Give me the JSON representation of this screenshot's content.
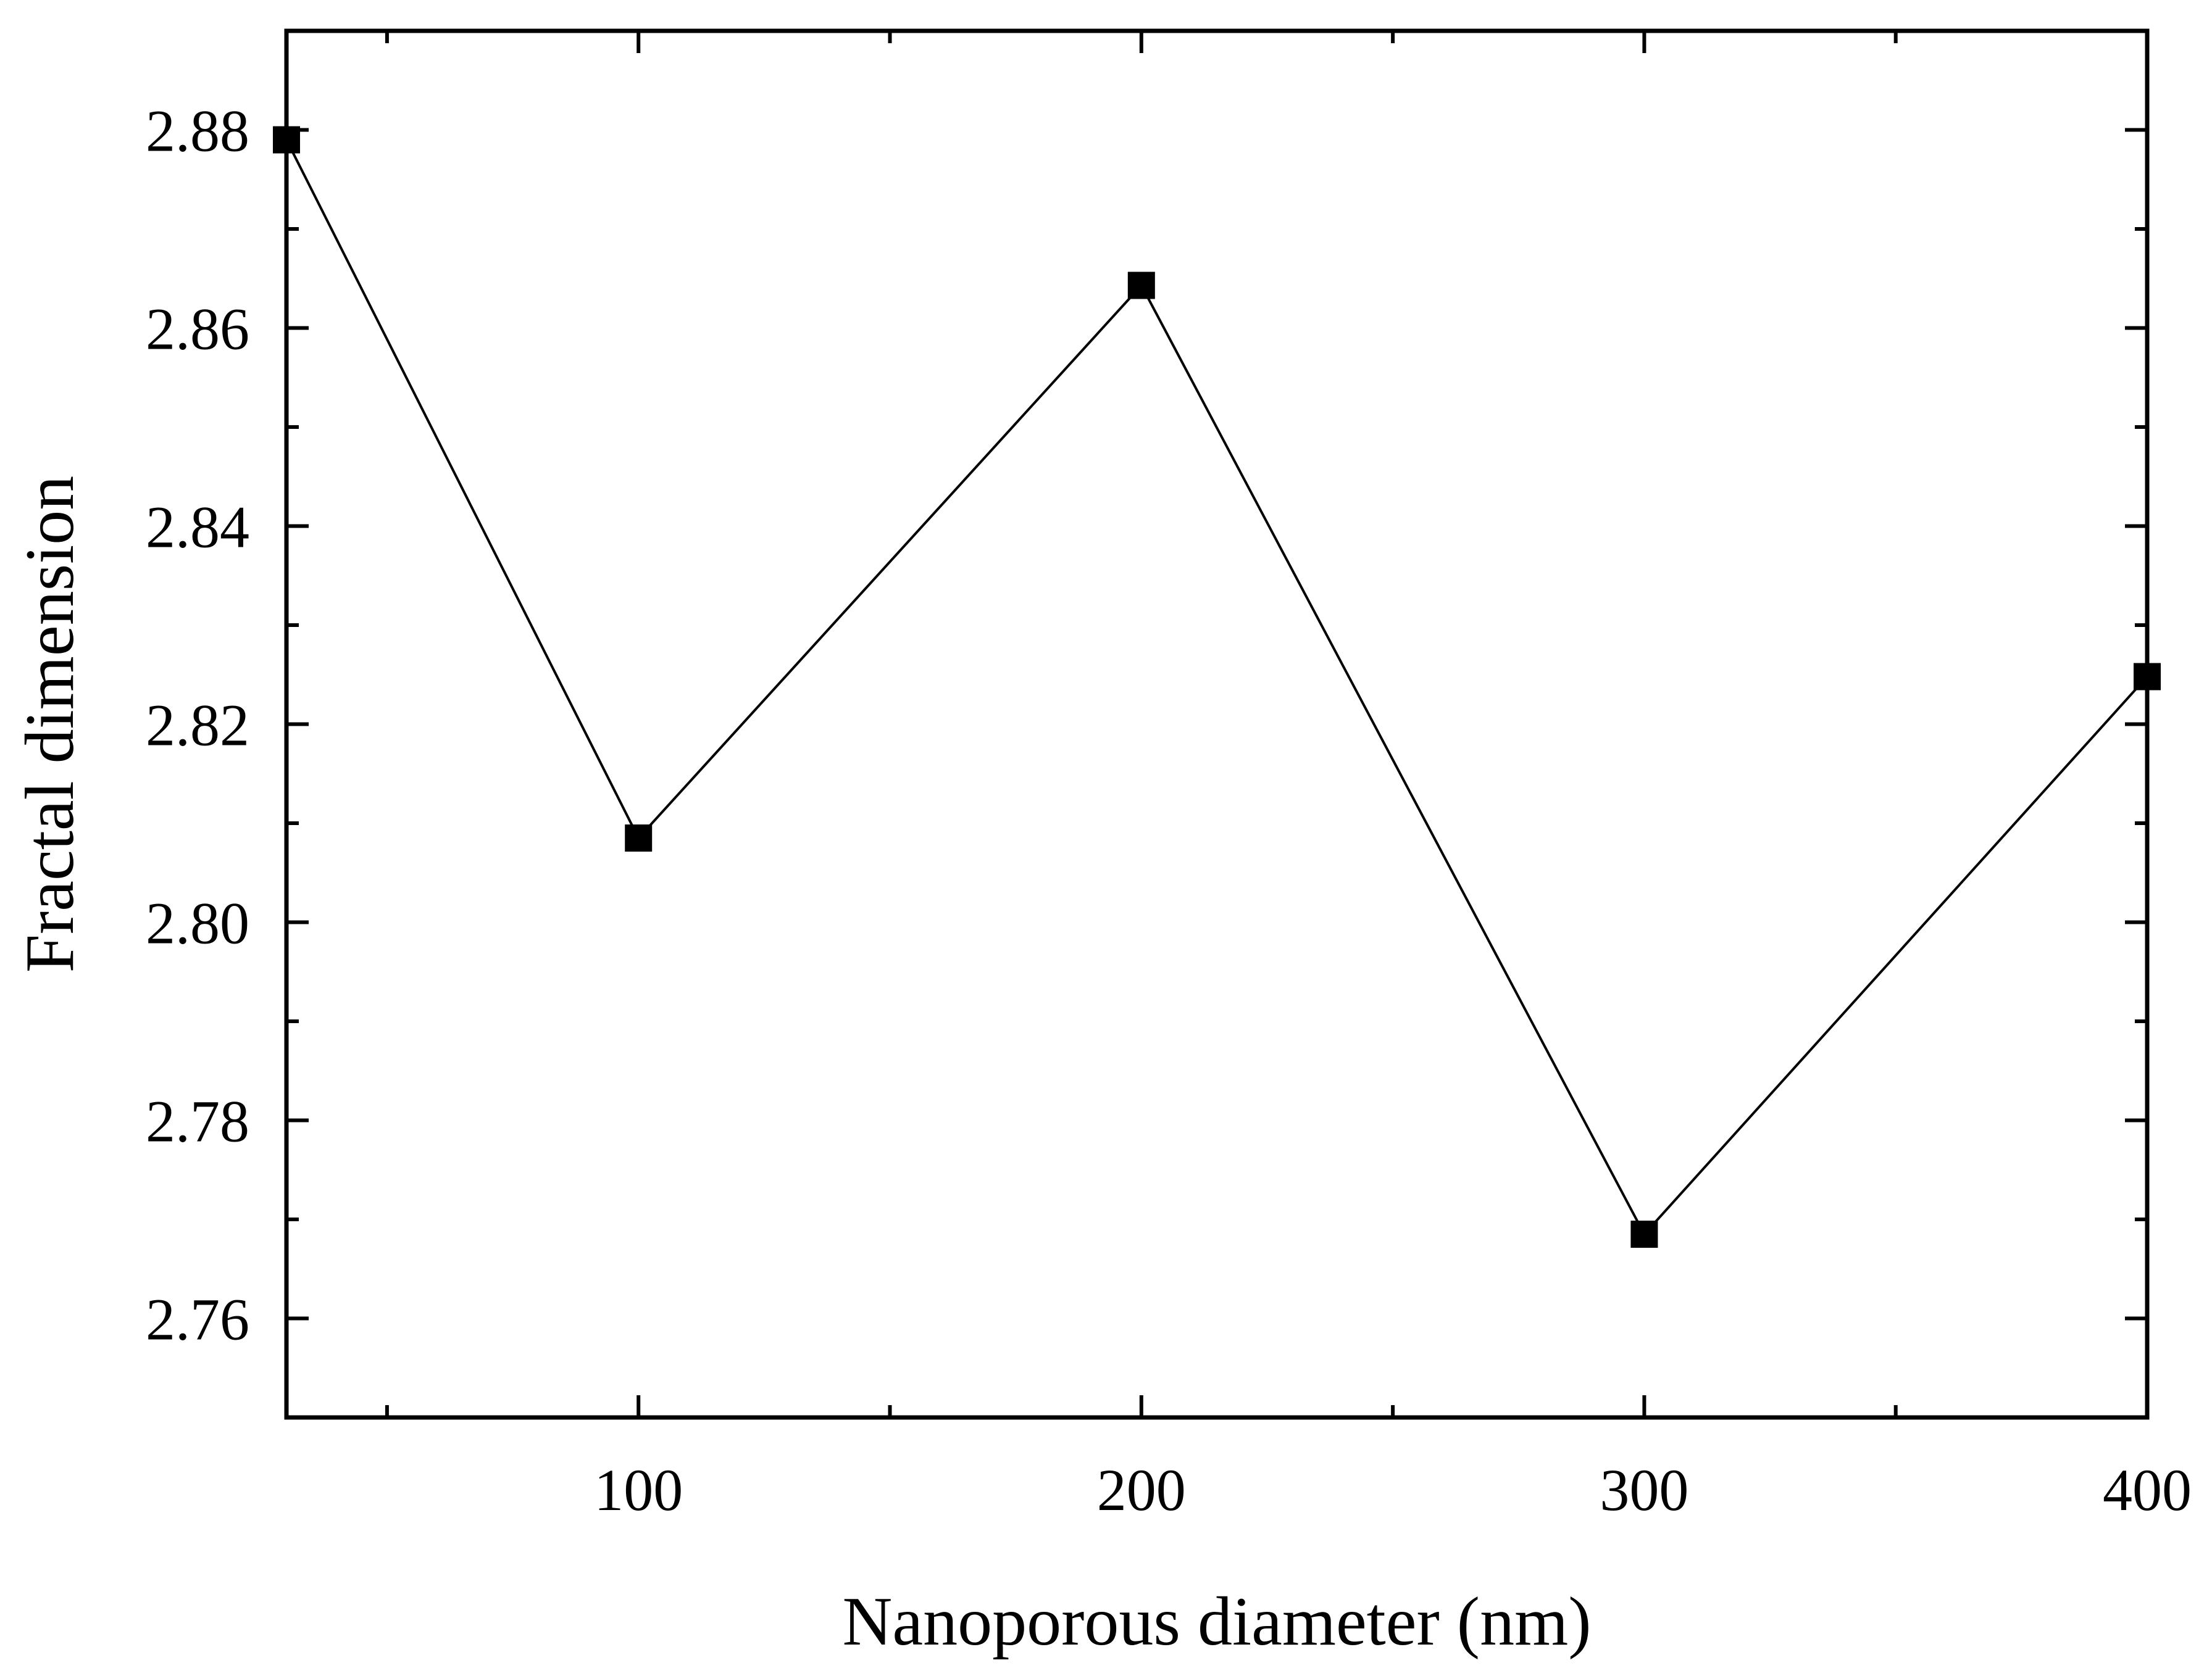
{
  "chart_data": {
    "type": "line",
    "title": "",
    "xlabel": "Nanoporous diameter (nm)",
    "ylabel": "Fractal dimension",
    "xlim": [
      30,
      400
    ],
    "ylim": [
      2.75,
      2.89
    ],
    "x_ticks": [
      100,
      200,
      300,
      400
    ],
    "x_tick_labels": [
      "100",
      "200",
      "300",
      "400"
    ],
    "y_ticks": [
      2.76,
      2.78,
      2.8,
      2.82,
      2.84,
      2.86,
      2.88
    ],
    "y_tick_labels": [
      "2.76",
      "2.78",
      "2.80",
      "2.82",
      "2.84",
      "2.86",
      "2.88"
    ],
    "grid": false,
    "legend": "none",
    "series": [
      {
        "marker": "square",
        "color": "#000000",
        "x": [
          30,
          100,
          200,
          300,
          400
        ],
        "y": [
          2.879,
          2.8085,
          2.8643,
          2.7685,
          2.8248
        ]
      }
    ]
  }
}
